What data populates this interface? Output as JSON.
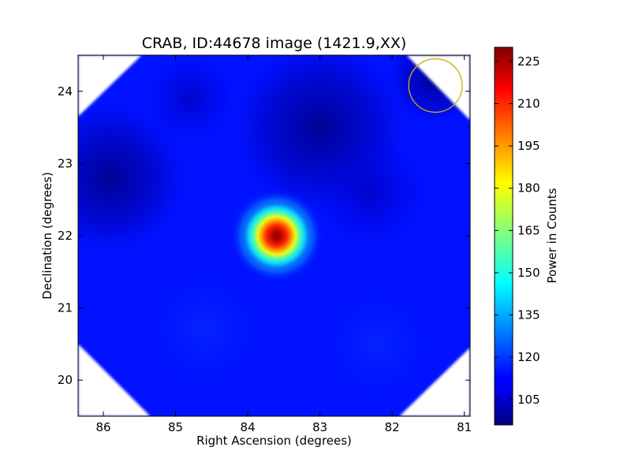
{
  "chart_data": {
    "type": "heatmap",
    "title": "CRAB, ID:44678 image (1421.9,XX)",
    "xlabel": "Right Ascension (degrees)",
    "ylabel": "Declination (degrees)",
    "colorbar_label": "Power in Counts",
    "colormap": "jet",
    "xlim": [
      86.35,
      80.92
    ],
    "ylim": [
      19.5,
      24.5
    ],
    "x_ticks": [
      86,
      85,
      84,
      83,
      82,
      81
    ],
    "y_ticks": [
      20,
      21,
      22,
      23,
      24
    ],
    "colorbar_range": [
      96,
      230
    ],
    "colorbar_ticks": [
      105,
      120,
      135,
      150,
      165,
      180,
      195,
      210,
      225
    ],
    "peak": {
      "ra": 83.6,
      "dec": 22.0,
      "value": 230
    },
    "background_level": 105,
    "beam_marker": {
      "ra": 81.4,
      "dec": 24.08,
      "radius_deg": 0.37,
      "color": "#c8b400"
    },
    "footprint": "octagon (corners outside the scanned region are blank)",
    "grid": false
  }
}
